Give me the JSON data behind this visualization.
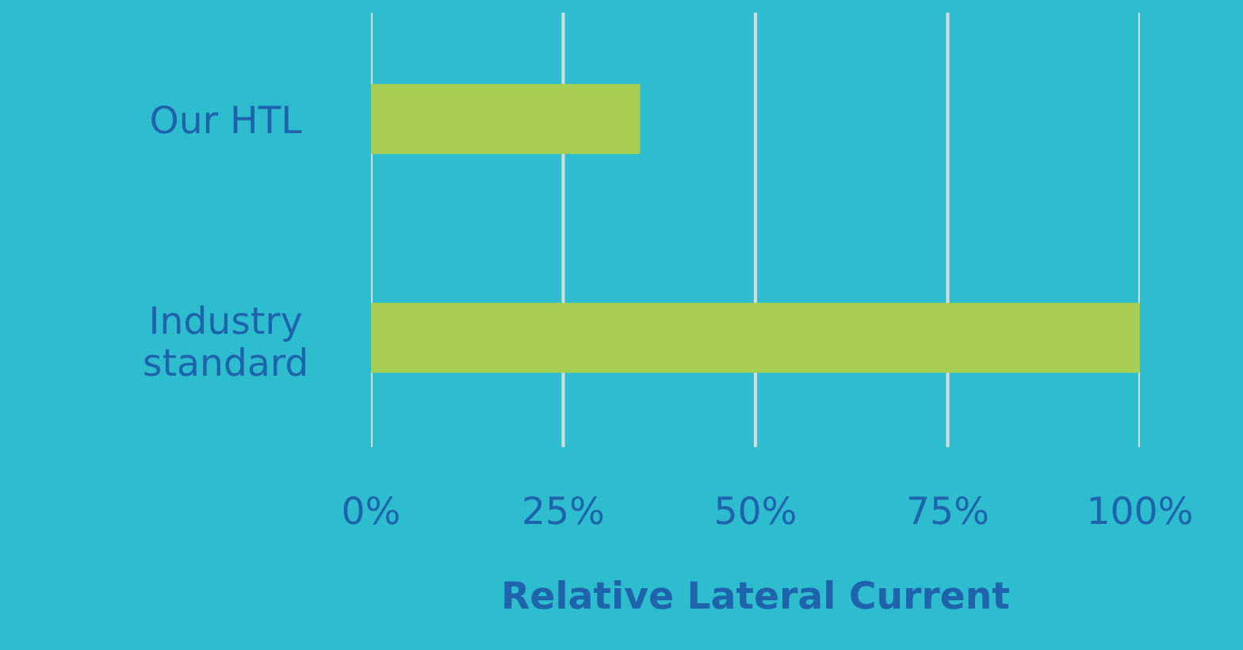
{
  "chart_data": {
    "type": "bar",
    "orientation": "horizontal",
    "xlabel": "Relative Lateral Current",
    "categories": [
      "Our HTL",
      "Industry\nstandard"
    ],
    "values": [
      35,
      100
    ],
    "color": "#a7cd52",
    "xlim": [
      0,
      100
    ],
    "xticks": [
      {
        "value": 0,
        "label": "0%"
      },
      {
        "value": 25,
        "label": "25%"
      },
      {
        "value": 50,
        "label": "50%"
      },
      {
        "value": 75,
        "label": "75%"
      },
      {
        "value": 100,
        "label": "100%"
      }
    ],
    "grid": "x",
    "legend": false
  }
}
